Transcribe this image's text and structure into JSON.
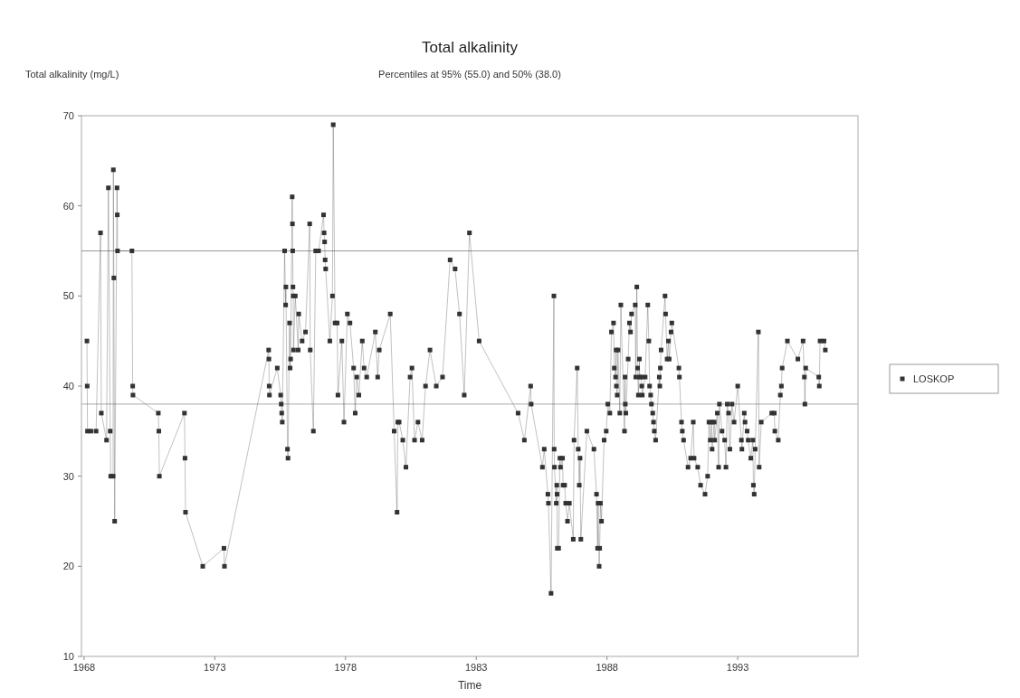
{
  "chart_data": {
    "type": "line",
    "title": "Total alkalinity",
    "subtitle": "Percentiles at 95% (55.0) and 50% (38.0)",
    "ylabel": "Total alkalinity (mg/L)",
    "xlabel": "Time",
    "xlim": [
      1967.9,
      1997.6
    ],
    "xticks": [
      1968,
      1973,
      1978,
      1983,
      1988,
      1993
    ],
    "ylim": [
      10,
      70
    ],
    "yticks": [
      10,
      20,
      30,
      40,
      50,
      60,
      70
    ],
    "grid": false,
    "legend": "right",
    "marker": "square",
    "line_style": "solid",
    "ref_lines": [
      {
        "axis": "y",
        "value": 55,
        "color": "#999999"
      },
      {
        "axis": "y",
        "value": 38,
        "color": "#bbbbbb"
      }
    ],
    "series": [
      {
        "name": "LOSKOP",
        "color": "#333333",
        "x": [
          1968.11,
          1968.12,
          1968.13,
          1968.26,
          1968.46,
          1968.63,
          1968.66,
          1968.86,
          1968.93,
          1969.0,
          1969.02,
          1969.11,
          1969.12,
          1969.14,
          1969.17,
          1969.26,
          1969.27,
          1969.28,
          1969.83,
          1969.86,
          1969.87,
          1970.84,
          1970.86,
          1970.88,
          1971.84,
          1971.86,
          1971.88,
          1972.54,
          1973.35,
          1973.37,
          1975.06,
          1975.07,
          1975.08,
          1975.09,
          1975.39,
          1975.52,
          1975.54,
          1975.56,
          1975.58,
          1975.67,
          1975.71,
          1975.72,
          1975.78,
          1975.8,
          1975.86,
          1975.88,
          1975.9,
          1975.96,
          1975.97,
          1975.98,
          1975.99,
          1976.0,
          1976.01,
          1976.08,
          1976.19,
          1976.21,
          1976.34,
          1976.47,
          1976.63,
          1976.65,
          1976.77,
          1976.86,
          1976.97,
          1977.16,
          1977.18,
          1977.2,
          1977.22,
          1977.24,
          1977.4,
          1977.5,
          1977.53,
          1977.6,
          1977.68,
          1977.71,
          1977.86,
          1977.94,
          1978.07,
          1978.17,
          1978.31,
          1978.37,
          1978.43,
          1978.51,
          1978.64,
          1978.71,
          1978.81,
          1979.14,
          1979.23,
          1979.29,
          1979.71,
          1979.86,
          1979.97,
          1980.0,
          1980.05,
          1980.19,
          1980.31,
          1980.47,
          1980.54,
          1980.64,
          1980.77,
          1980.93,
          1981.06,
          1981.23,
          1981.47,
          1981.71,
          1982.0,
          1982.19,
          1982.36,
          1982.54,
          1982.74,
          1983.11,
          1984.6,
          1984.84,
          1985.08,
          1985.1,
          1985.53,
          1985.6,
          1985.74,
          1985.76,
          1985.86,
          1985.97,
          1985.98,
          1985.99,
          1986.06,
          1986.08,
          1986.09,
          1986.1,
          1986.15,
          1986.2,
          1986.22,
          1986.3,
          1986.32,
          1986.38,
          1986.42,
          1986.49,
          1986.56,
          1986.71,
          1986.74,
          1986.86,
          1986.9,
          1986.94,
          1986.97,
          1987.0,
          1987.23,
          1987.5,
          1987.6,
          1987.64,
          1987.66,
          1987.7,
          1987.72,
          1987.75,
          1987.79,
          1987.89,
          1987.97,
          1988.03,
          1988.11,
          1988.17,
          1988.25,
          1988.28,
          1988.33,
          1988.35,
          1988.36,
          1988.39,
          1988.42,
          1988.49,
          1988.53,
          1988.67,
          1988.69,
          1988.7,
          1988.72,
          1988.81,
          1988.86,
          1988.9,
          1988.94,
          1989.08,
          1989.1,
          1989.14,
          1989.17,
          1989.2,
          1989.24,
          1989.25,
          1989.31,
          1989.33,
          1989.35,
          1989.46,
          1989.56,
          1989.6,
          1989.63,
          1989.67,
          1989.7,
          1989.75,
          1989.78,
          1989.81,
          1989.86,
          1990.0,
          1990.02,
          1990.04,
          1990.07,
          1990.22,
          1990.24,
          1990.3,
          1990.35,
          1990.38,
          1990.45,
          1990.48,
          1990.75,
          1990.77,
          1990.85,
          1990.88,
          1990.93,
          1991.1,
          1991.2,
          1991.3,
          1991.33,
          1991.47,
          1991.58,
          1991.75,
          1991.85,
          1991.9,
          1991.95,
          1992.0,
          1992.02,
          1992.1,
          1992.12,
          1992.22,
          1992.27,
          1992.3,
          1992.4,
          1992.5,
          1992.55,
          1992.6,
          1992.65,
          1992.7,
          1992.78,
          1992.86,
          1993.0,
          1993.14,
          1993.16,
          1993.25,
          1993.28,
          1993.36,
          1993.4,
          1993.5,
          1993.58,
          1993.6,
          1993.63,
          1993.67,
          1993.79,
          1993.82,
          1993.9,
          1994.3,
          1994.4,
          1994.42,
          1994.55,
          1994.63,
          1994.67,
          1994.7,
          1994.9,
          1995.3,
          1995.5,
          1995.55,
          1995.57,
          1995.6,
          1996.1,
          1996.12,
          1996.15,
          1996.3,
          1996.35
        ],
        "values": [
          45,
          40,
          35,
          35,
          35,
          57,
          37,
          34,
          62,
          35,
          30,
          30,
          64,
          52,
          25,
          62,
          59,
          55,
          55,
          40,
          39,
          37,
          35,
          30,
          37,
          32,
          26,
          20,
          22,
          20,
          44,
          43,
          40,
          39,
          42,
          39,
          38,
          37,
          36,
          55,
          49,
          51,
          33,
          32,
          47,
          42,
          43,
          61,
          58,
          55,
          51,
          50,
          44,
          50,
          44,
          48,
          45,
          46,
          58,
          44,
          35,
          55,
          55,
          59,
          57,
          56,
          54,
          53,
          45,
          50,
          69,
          47,
          47,
          39,
          45,
          36,
          48,
          47,
          42,
          37,
          41,
          39,
          45,
          42,
          41,
          46,
          41,
          44,
          48,
          35,
          26,
          36,
          36,
          34,
          31,
          41,
          42,
          34,
          36,
          34,
          40,
          44,
          40,
          41,
          54,
          53,
          48,
          39,
          57,
          45,
          37,
          34,
          40,
          38,
          31,
          33,
          28,
          27,
          17,
          50,
          33,
          31,
          27,
          29,
          28,
          22,
          22,
          32,
          31,
          32,
          29,
          29,
          27,
          25,
          27,
          23,
          34,
          42,
          33,
          29,
          32,
          23,
          35,
          33,
          28,
          22,
          27,
          20,
          22,
          27,
          25,
          34,
          35,
          38,
          37,
          46,
          47,
          42,
          41,
          44,
          40,
          39,
          44,
          37,
          49,
          35,
          41,
          38,
          37,
          43,
          47,
          46,
          48,
          49,
          41,
          51,
          42,
          39,
          43,
          41,
          41,
          40,
          39,
          41,
          49,
          45,
          40,
          39,
          38,
          37,
          36,
          35,
          34,
          41,
          40,
          42,
          44,
          50,
          48,
          43,
          45,
          43,
          46,
          47,
          42,
          41,
          36,
          35,
          34,
          31,
          32,
          36,
          32,
          31,
          29,
          28,
          30,
          36,
          34,
          36,
          33,
          36,
          34,
          37,
          31,
          38,
          35,
          34,
          31,
          38,
          37,
          33,
          38,
          36,
          40,
          34,
          33,
          37,
          36,
          35,
          34,
          32,
          34,
          29,
          28,
          33,
          46,
          31,
          36,
          37,
          37,
          35,
          34,
          39,
          40,
          42,
          45,
          43,
          45,
          41,
          38,
          42,
          41,
          40,
          45,
          45,
          44
        ]
      }
    ]
  }
}
